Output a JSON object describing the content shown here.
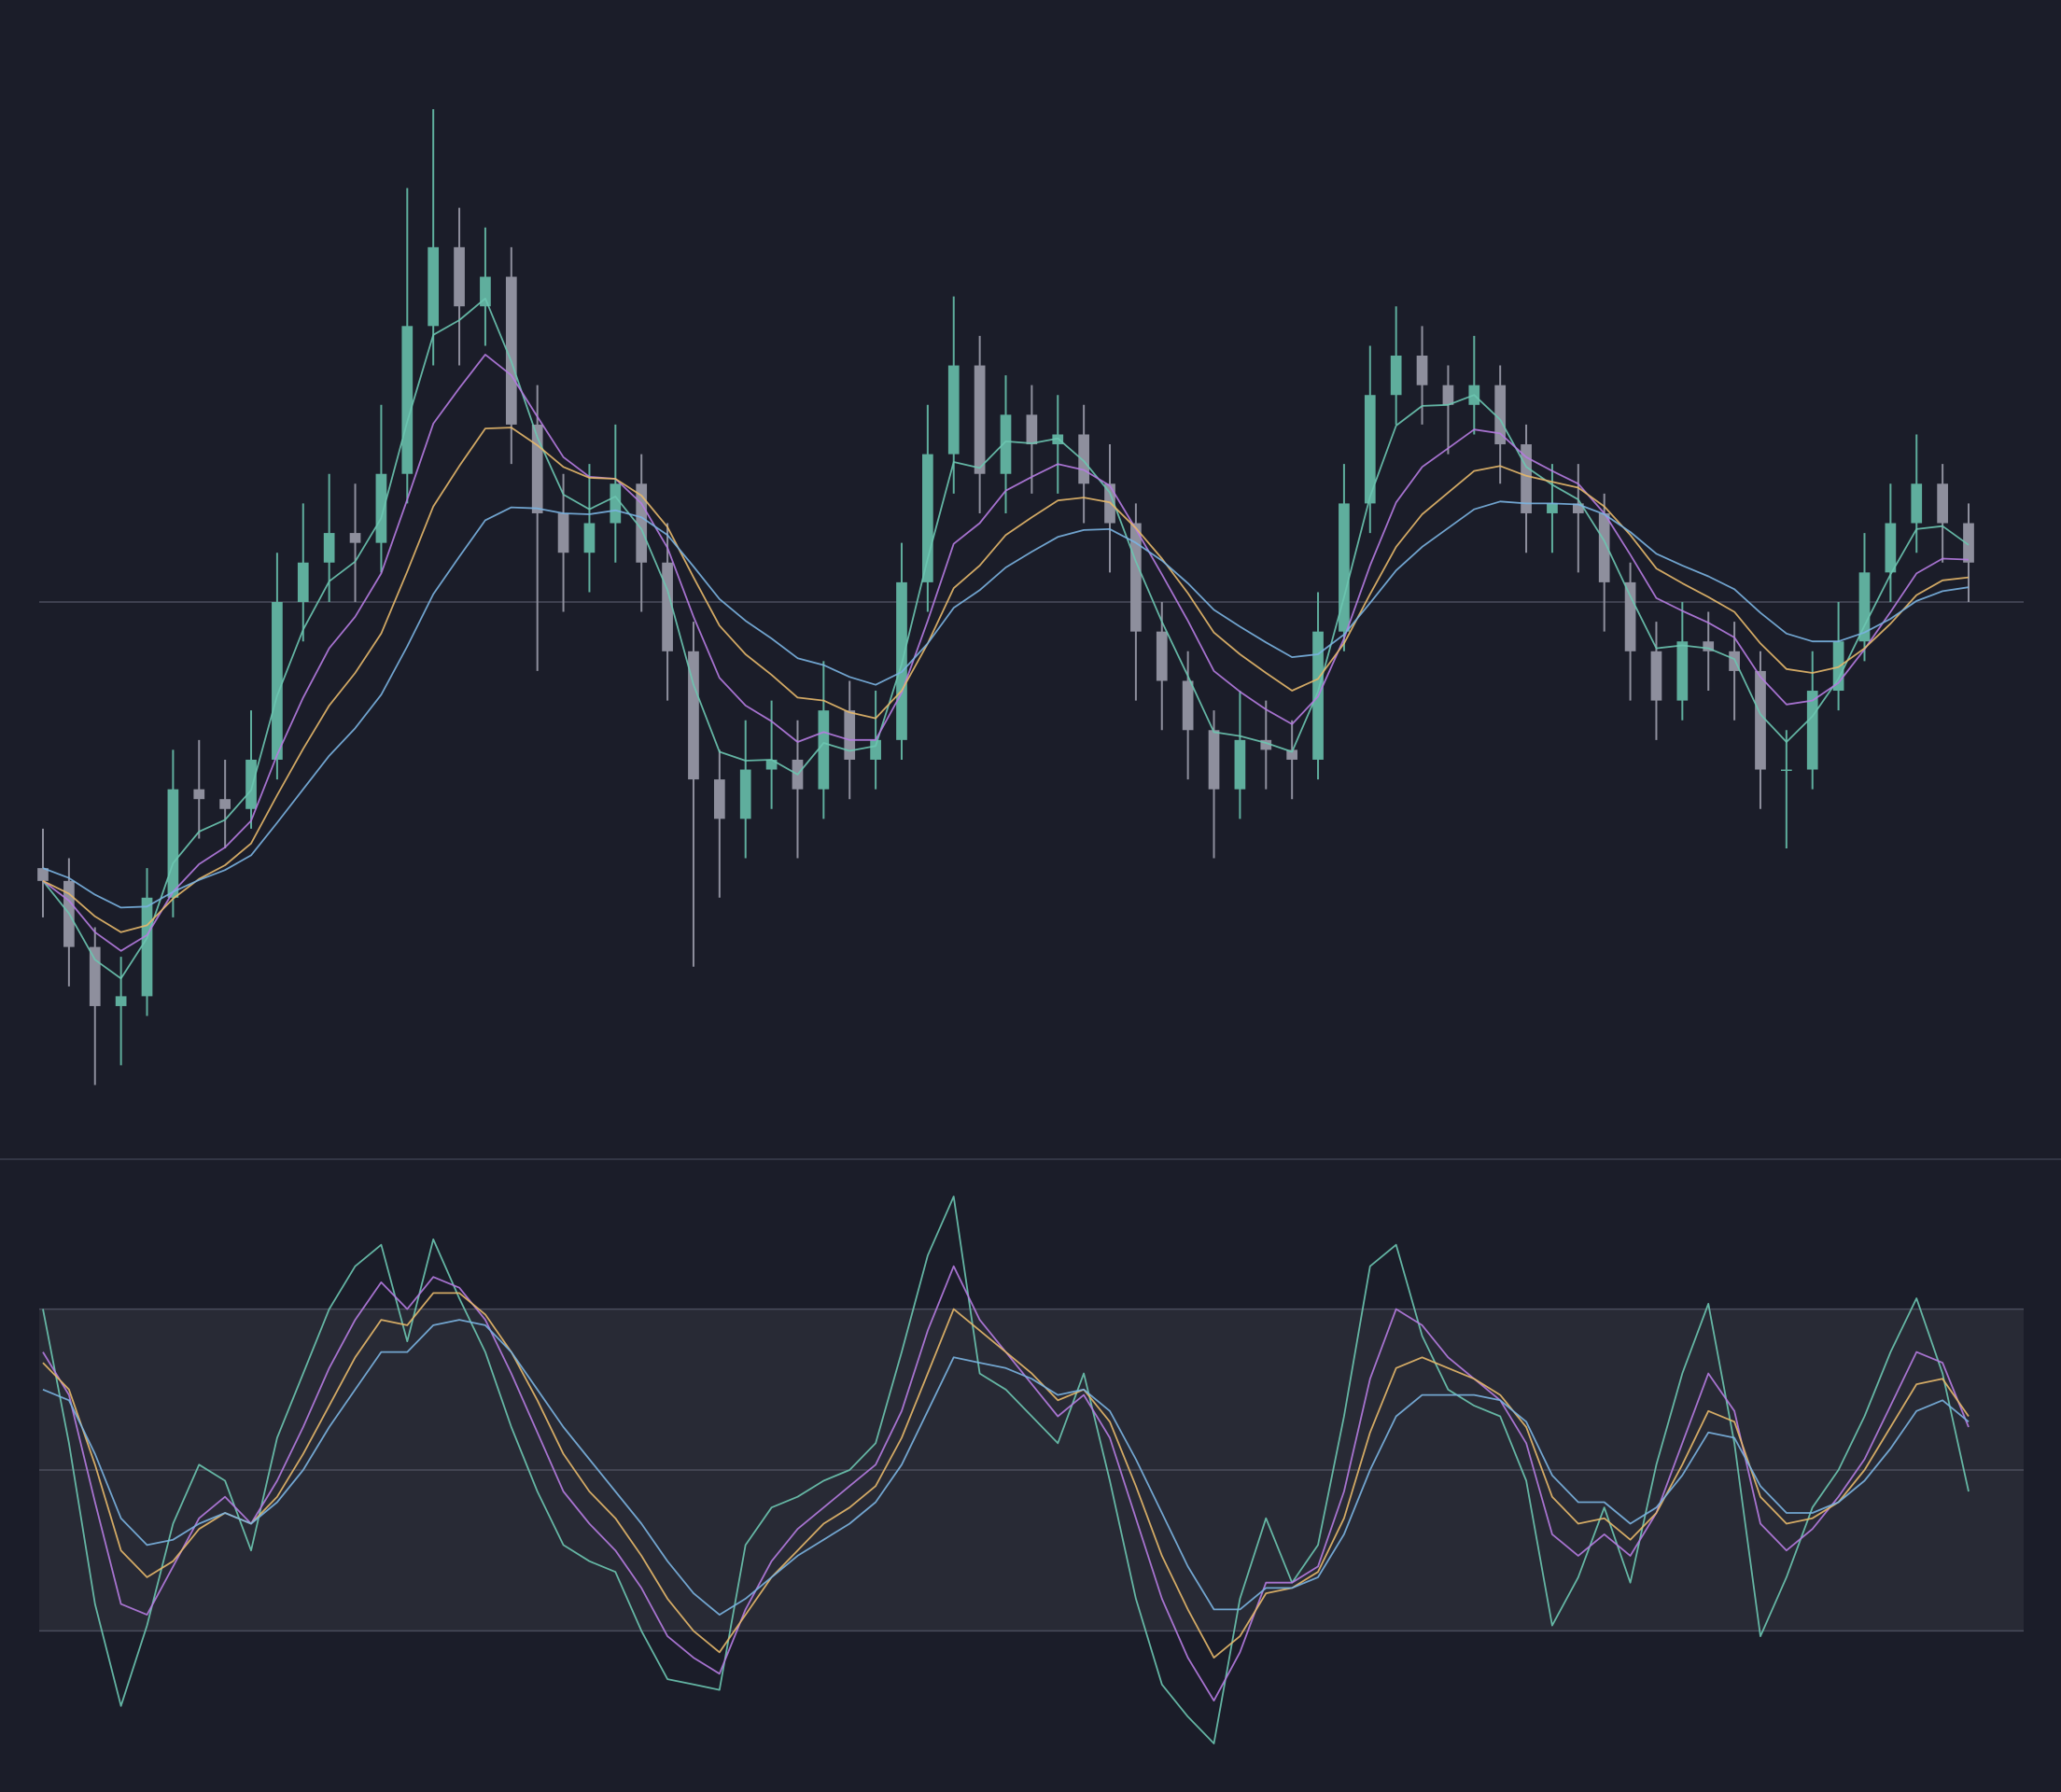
{
  "chart_data": [
    {
      "type": "candlestick",
      "up_color": "#5fae9d",
      "down_color": "#8e8f9d",
      "open": [
        23,
        21.7,
        15,
        9,
        10,
        20,
        31,
        30,
        29,
        34,
        50,
        54,
        57,
        56,
        63,
        78,
        86,
        80,
        83,
        68,
        59,
        55,
        58,
        62,
        54,
        45,
        32,
        28,
        33,
        34,
        31,
        39,
        34,
        36,
        52,
        65,
        74,
        63,
        69,
        66,
        67,
        62,
        58,
        47,
        42,
        37,
        31,
        36,
        35,
        34,
        47,
        60,
        71,
        75,
        72,
        70,
        72,
        66,
        59,
        60,
        59,
        52,
        45,
        40,
        46,
        45,
        43,
        33,
        33,
        41,
        46,
        53,
        58,
        62,
        58
      ],
      "high": [
        27,
        24,
        17,
        14,
        23,
        35,
        36,
        34,
        39,
        55,
        60,
        63,
        62,
        70,
        92,
        100,
        90,
        88,
        86,
        72,
        63,
        64,
        68,
        65,
        58,
        48,
        35,
        38,
        40,
        38,
        44,
        42,
        41,
        56,
        70,
        81,
        77,
        73,
        72,
        71,
        70,
        66,
        60,
        50,
        45,
        39,
        41,
        40,
        38,
        51,
        64,
        76,
        80,
        78,
        74,
        77,
        74,
        68,
        64,
        64,
        61,
        54,
        48,
        50,
        49,
        48,
        45,
        37,
        45,
        50,
        57,
        62,
        67,
        64,
        60
      ],
      "low": [
        18,
        11,
        1,
        3,
        8,
        18,
        26,
        25,
        27,
        32,
        46,
        50,
        50,
        53,
        60,
        74,
        74,
        76,
        64,
        43,
        49,
        51,
        54,
        49,
        40,
        13,
        20,
        24,
        29,
        24,
        28,
        30,
        31,
        34,
        49,
        61,
        59,
        59,
        61,
        61,
        58,
        53,
        40,
        37,
        32,
        24,
        28,
        31,
        30,
        32,
        45,
        57,
        68,
        68,
        65,
        67,
        62,
        55,
        55,
        53,
        47,
        40,
        36,
        38,
        41,
        38,
        29,
        25,
        31,
        39,
        44,
        50,
        55,
        54,
        50
      ],
      "close": [
        21.7,
        15,
        9,
        10,
        20,
        31,
        30,
        29,
        34,
        50,
        54,
        57,
        56,
        63,
        78,
        86,
        80,
        83,
        68,
        59,
        55,
        58,
        62,
        54,
        45,
        32,
        28,
        33,
        34,
        31,
        39,
        34,
        36,
        52,
        65,
        74,
        63,
        69,
        66,
        67,
        62,
        58,
        47,
        42,
        37,
        31,
        36,
        35,
        34,
        47,
        60,
        71,
        75,
        72,
        70,
        72,
        66,
        59,
        60,
        59,
        52,
        45,
        40,
        46,
        45,
        43,
        33,
        33,
        41,
        46,
        53,
        58,
        62,
        58,
        54
      ],
      "series": [
        {
          "color": "#6cc5b0",
          "values": [
            21.7,
            18.4,
            13.7,
            11.8,
            15.9,
            23.5,
            26.7,
            27.9,
            30.9,
            40.5,
            47.2,
            52.1,
            54.1,
            58.5,
            68.3,
            77.1,
            78.6,
            80.8,
            74.4,
            66.7,
            60.9,
            59.4,
            60.7,
            57.4,
            51.2,
            41.6,
            34.8,
            33.9,
            34.0,
            32.5,
            35.7,
            34.9,
            35.4,
            43.7,
            54.4,
            64.2,
            63.6,
            66.3,
            66.1,
            66.6,
            64.3,
            61.1,
            54.1,
            48.0,
            42.5,
            36.8,
            36.4,
            35.7,
            34.8,
            40.9,
            50.5,
            60.7,
            67.9,
            69.9,
            70.0,
            71.0,
            68.5,
            63.7,
            61.9,
            60.4,
            56.2,
            50.6,
            45.3,
            45.6,
            45.3,
            44.2,
            38.6,
            35.8,
            38.4,
            42.2,
            47.6,
            52.8,
            57.4,
            57.7,
            55.8
          ]
        },
        {
          "color": "#b57be0",
          "values": [
            21.7,
            19.7,
            16.5,
            14.6,
            16.2,
            20.6,
            23.4,
            25.1,
            27.8,
            34.5,
            40.3,
            45.3,
            48.5,
            52.9,
            60.4,
            68.1,
            71.7,
            75.1,
            73.0,
            68.8,
            64.7,
            62.7,
            62.5,
            60.0,
            55.5,
            48.5,
            42.3,
            39.5,
            37.9,
            35.8,
            36.8,
            36.0,
            36.0,
            40.8,
            48.1,
            55.9,
            58.0,
            61.3,
            62.7,
            64.0,
            63.4,
            61.8,
            57.4,
            52.8,
            48.1,
            43.0,
            40.9,
            39.1,
            37.6,
            40.4,
            46.3,
            53.7,
            60.1,
            63.7,
            65.6,
            67.5,
            67.1,
            64.7,
            63.3,
            62.0,
            59.0,
            54.8,
            50.4,
            49.1,
            47.9,
            46.4,
            42.4,
            39.6,
            40.0,
            41.8,
            45.2,
            49.0,
            52.9,
            54.4,
            54.3
          ]
        },
        {
          "color": "#e6b86a",
          "values": [
            21.7,
            20.4,
            18.1,
            16.5,
            17.2,
            19.9,
            21.9,
            23.3,
            25.5,
            30.4,
            35.1,
            39.5,
            42.8,
            46.8,
            53.1,
            59.7,
            63.8,
            67.6,
            67.7,
            65.9,
            63.7,
            62.6,
            62.5,
            60.8,
            57.6,
            52.5,
            47.6,
            44.7,
            42.6,
            40.3,
            40.0,
            38.8,
            38.2,
            41.0,
            45.8,
            51.4,
            53.7,
            56.8,
            58.6,
            60.3,
            60.6,
            60.1,
            57.5,
            54.4,
            50.9,
            46.9,
            44.7,
            42.8,
            41.0,
            42.2,
            45.8,
            50.8,
            55.6,
            58.9,
            61.1,
            63.3,
            63.8,
            62.8,
            62.2,
            61.6,
            59.7,
            56.8,
            53.4,
            51.9,
            50.5,
            49.0,
            45.8,
            43.2,
            42.8,
            43.4,
            45.3,
            47.8,
            50.7,
            52.2,
            52.5
          ]
        },
        {
          "color": "#7ab3e0",
          "values": [
            23,
            22,
            20.3,
            19,
            19.1,
            20.6,
            21.8,
            22.8,
            24.3,
            27.6,
            31.0,
            34.4,
            37.2,
            40.6,
            45.5,
            50.8,
            54.6,
            58.3,
            59.6,
            59.5,
            59.0,
            58.9,
            59.3,
            58.6,
            56.8,
            53.6,
            50.3,
            48.1,
            46.3,
            44.3,
            43.6,
            42.4,
            41.6,
            42.9,
            45.8,
            49.4,
            51.2,
            53.5,
            55.1,
            56.6,
            57.3,
            57.4,
            56.0,
            54.2,
            51.9,
            49.2,
            47.5,
            45.9,
            44.4,
            44.7,
            46.7,
            49.9,
            53.2,
            55.6,
            57.5,
            59.4,
            60.2,
            60.0,
            60.0,
            59.9,
            58.9,
            57.1,
            54.9,
            53.7,
            52.6,
            51.3,
            48.9,
            46.8,
            46.0,
            46.0,
            46.9,
            48.3,
            50.1,
            51.1,
            51.5
          ]
        }
      ],
      "ylim": [
        0,
        100
      ],
      "yticks": [
        50
      ],
      "grid": true
    },
    {
      "type": "line",
      "series": [
        {
          "color": "#6cc5b0",
          "values": [
            80,
            55,
            25,
            6,
            21,
            40,
            51,
            48,
            35,
            56,
            68,
            80,
            88,
            92,
            74,
            93,
            82,
            72,
            58,
            46,
            36,
            33,
            31,
            20,
            11,
            10,
            9,
            36,
            43,
            45,
            48,
            50,
            55,
            72,
            90,
            101,
            68,
            65,
            60,
            55,
            68,
            48,
            26,
            10,
            4,
            -1,
            26,
            41,
            29,
            36,
            60,
            88,
            92,
            75,
            65,
            62,
            60,
            48,
            21,
            30,
            43,
            29,
            51,
            68,
            81,
            55,
            19,
            30,
            43,
            50,
            60,
            72,
            82,
            68,
            46
          ]
        },
        {
          "color": "#b57be0",
          "values": [
            72,
            64,
            44,
            25,
            23,
            32,
            41,
            45,
            40,
            48,
            58,
            69,
            78,
            85,
            80,
            86,
            84,
            78,
            68,
            57,
            46,
            40,
            35,
            28,
            19,
            15,
            12,
            24,
            33,
            39,
            43,
            47,
            51,
            61,
            76,
            88,
            78,
            72,
            66,
            60,
            64,
            56,
            41,
            26,
            15,
            7,
            16,
            29,
            29,
            32,
            46,
            67,
            80,
            77,
            71,
            67,
            63,
            55,
            38,
            34,
            38,
            34,
            42,
            55,
            68,
            61,
            40,
            35,
            39,
            45,
            52,
            62,
            72,
            70,
            58
          ]
        },
        {
          "color": "#e6b86a",
          "values": [
            70,
            65,
            51,
            35,
            30,
            33,
            39,
            42,
            40,
            45,
            53,
            62,
            71,
            78,
            77,
            83,
            83,
            79,
            72,
            63,
            53,
            46,
            41,
            34,
            26,
            20,
            16,
            23,
            30,
            35,
            40,
            43,
            47,
            56,
            68,
            80,
            76,
            72,
            68,
            63,
            65,
            59,
            47,
            34,
            24,
            15,
            19,
            27,
            28,
            31,
            41,
            57,
            69,
            71,
            69,
            67,
            64,
            58,
            45,
            40,
            41,
            37,
            42,
            51,
            61,
            59,
            45,
            40,
            41,
            44,
            50,
            58,
            66,
            67,
            60
          ]
        },
        {
          "color": "#7ab3e0",
          "values": [
            65,
            63,
            53,
            41,
            36,
            37,
            40,
            42,
            40,
            44,
            50,
            58,
            65,
            72,
            72,
            77,
            78,
            77,
            72,
            65,
            58,
            52,
            46,
            40,
            33,
            27,
            23,
            26,
            30,
            34,
            37,
            40,
            44,
            51,
            61,
            71,
            70,
            69,
            67,
            64,
            65,
            61,
            52,
            42,
            32,
            24,
            24,
            28,
            28,
            30,
            38,
            50,
            60,
            64,
            64,
            64,
            63,
            59,
            49,
            44,
            44,
            40,
            43,
            49,
            57,
            56,
            47,
            42,
            42,
            44,
            48,
            54,
            61,
            63,
            59
          ]
        }
      ],
      "ylim": [
        -5,
        105
      ],
      "yticks": [
        20,
        50,
        80
      ],
      "grid": true,
      "shade_band": true
    }
  ]
}
